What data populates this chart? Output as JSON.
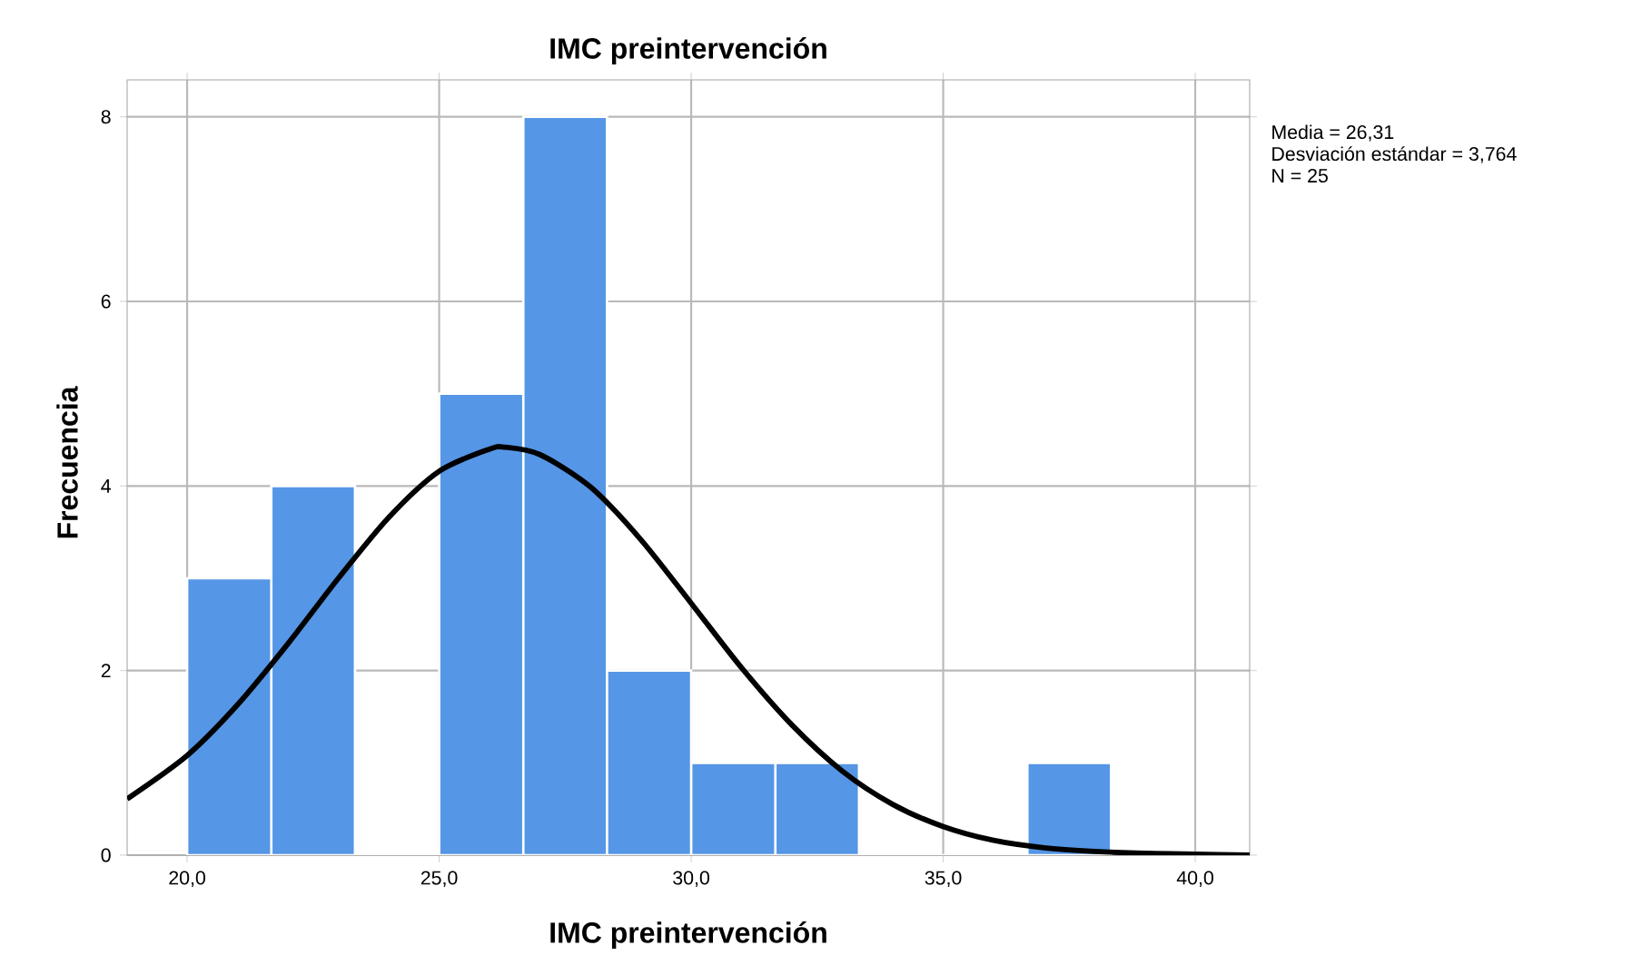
{
  "chart_data": {
    "type": "histogram",
    "title": "IMC preintervención",
    "xlabel": "IMC preintervención",
    "ylabel": "Frecuencia",
    "annotations": [
      "Media = 26,31",
      "Desviación estándar = 3,764",
      "N = 25"
    ],
    "series": [
      {
        "type": "histogram",
        "color": "#5596e6",
        "bins": [
          20.0,
          21.67,
          23.33,
          25.0,
          26.67,
          28.33,
          30.0,
          31.67,
          33.33,
          36.67,
          38.33
        ],
        "values": [
          3,
          4,
          0,
          5,
          8,
          2,
          1,
          1,
          0,
          1
        ]
      },
      {
        "type": "line",
        "color": "#000000",
        "x": [
          18.81,
          20,
          21,
          22,
          23,
          24,
          25,
          26,
          26.31,
          27,
          28,
          29,
          30,
          31,
          32,
          33,
          34,
          35,
          36,
          37,
          38,
          39,
          40,
          41.08
        ],
        "values": [
          0.61,
          1.08,
          1.63,
          2.29,
          3.0,
          3.66,
          4.16,
          4.4,
          4.42,
          4.34,
          3.99,
          3.42,
          2.73,
          2.03,
          1.41,
          0.91,
          0.55,
          0.31,
          0.16,
          0.08,
          0.04,
          0.02,
          0.01,
          0.0
        ]
      }
    ],
    "xlim": [
      18.81,
      41.08
    ],
    "ylim": [
      0,
      8.4
    ],
    "xticks": [
      {
        "value": 20,
        "label": "20,0"
      },
      {
        "value": 25,
        "label": "25,0"
      },
      {
        "value": 30,
        "label": "30,0"
      },
      {
        "value": 35,
        "label": "35,0"
      },
      {
        "value": 40,
        "label": "40,0"
      }
    ],
    "yticks": [
      0,
      2,
      4,
      6,
      8
    ],
    "grid": true,
    "marker": "none",
    "line_style": "solid"
  }
}
